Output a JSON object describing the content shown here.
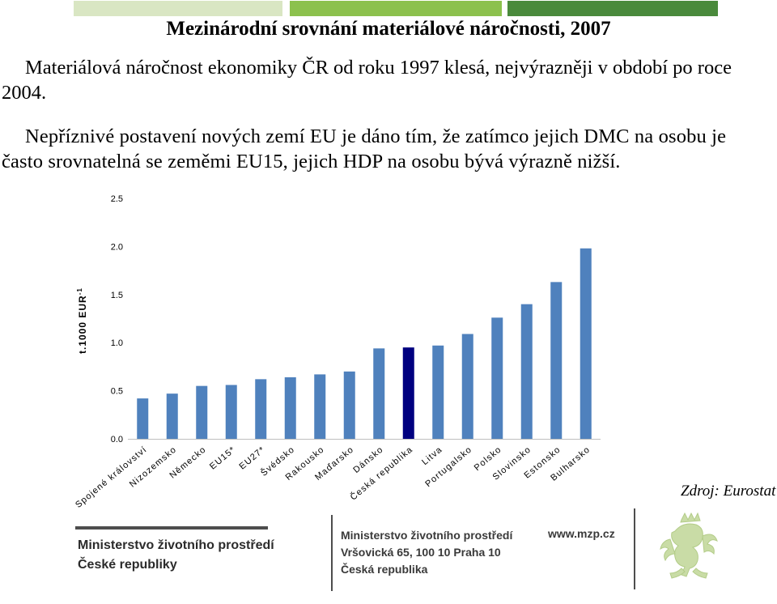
{
  "header": {
    "title": "Mezinárodní srovnání materiálové náročnosti, 2007",
    "paragraph1": "Materiálová náročnost ekonomiky ČR od roku 1997 klesá, nejvýrazněji v období po roce 2004.",
    "paragraph2": "Nepříznivé postavení nových zemí EU je dáno tím, že zatímco jejich DMC na osobu je často srovnatelná se zeměmi EU15, jejich HDP na osobu bývá výrazně nižší."
  },
  "colors": {
    "bar": "#4f81bd",
    "highlight_bar": "#000080",
    "topbar_1": "#d9e6c3",
    "topbar_2": "#8cc14d",
    "topbar_3": "#4a8a3c"
  },
  "chart_data": {
    "type": "bar",
    "categories": [
      "Spojené království",
      "Nizozemsko",
      "Německo",
      "EU15*",
      "EU27*",
      "Švédsko",
      "Rakousko",
      "Maďarsko",
      "Dánsko",
      "Česká republika",
      "Litva",
      "Portugalsko",
      "Polsko",
      "Slovinsko",
      "Estonsko",
      "Bulharsko"
    ],
    "values": [
      0.42,
      0.47,
      0.55,
      0.56,
      0.62,
      0.64,
      0.67,
      0.7,
      0.94,
      0.95,
      0.97,
      1.09,
      1.26,
      1.4,
      1.63,
      1.98
    ],
    "highlight": "Česká republika",
    "ylabel": "t.1000 EUR",
    "ylabel_superscript": "-1",
    "ylim": [
      0,
      2.5
    ],
    "yticks": [
      "0.0",
      "0.5",
      "1.0",
      "1.5",
      "2.0",
      "2.5"
    ],
    "grid": false
  },
  "source": "Zdroj: Eurostat",
  "footer": {
    "ministry_line1": "Ministerstvo životního prostředí",
    "ministry_line2": "České republiky",
    "address_line1": "Ministerstvo životního prostředí",
    "address_line2": "Vršovická 65, 100 10  Praha 10",
    "address_line3": "Česká republika",
    "web": "www.mzp.cz"
  }
}
